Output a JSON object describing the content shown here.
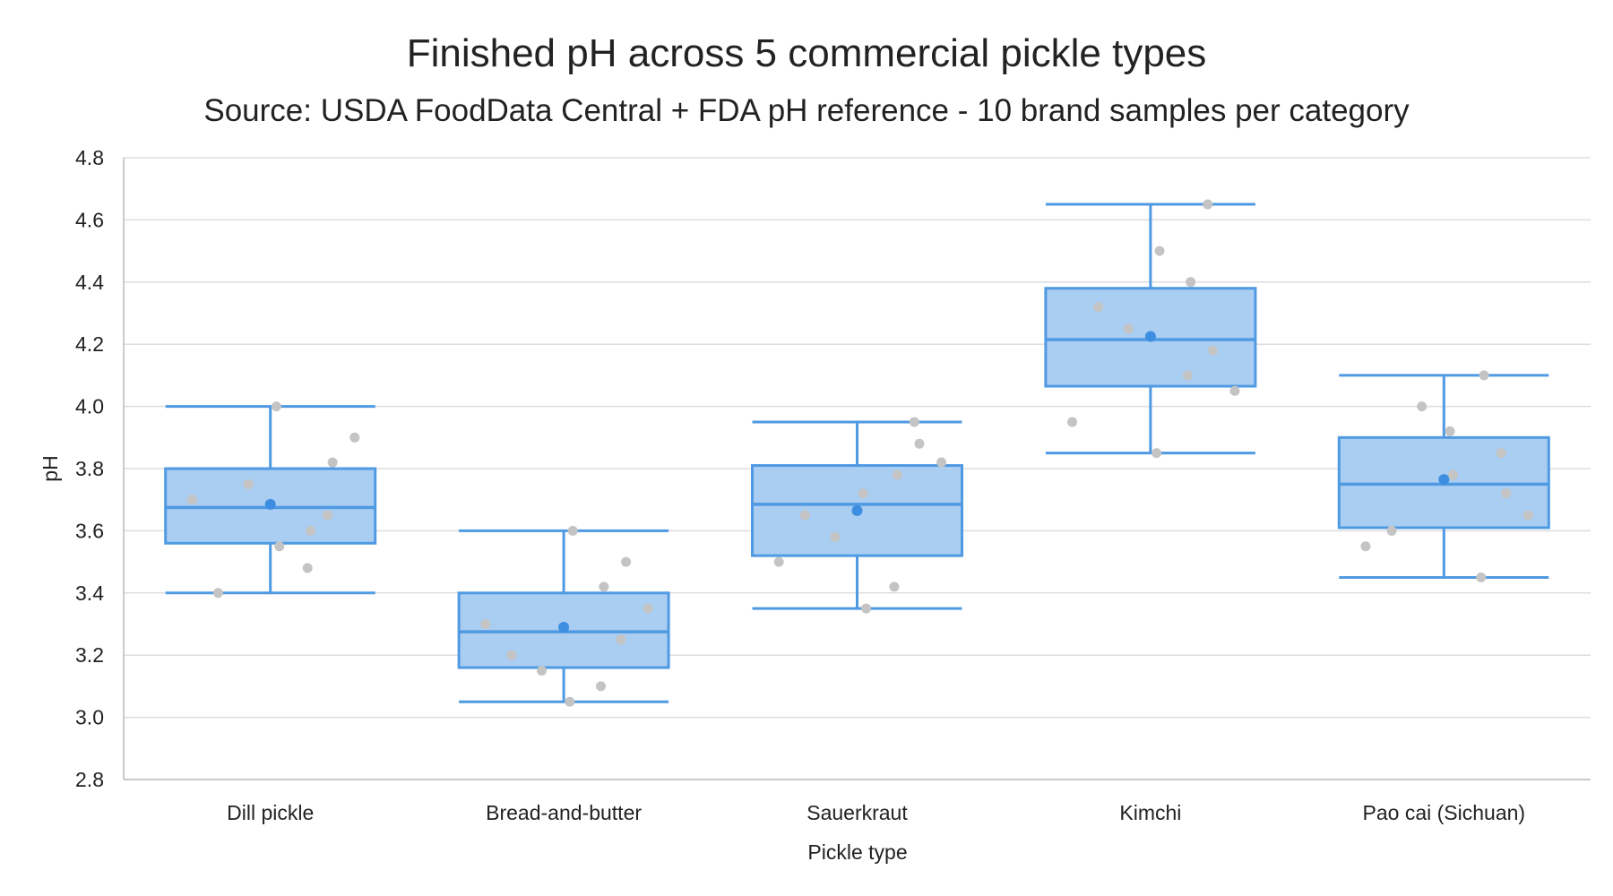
{
  "chart_data": {
    "type": "box",
    "title": "Finished pH across 5 commercial pickle types",
    "subtitle": "Source: USDA FoodData Central + FDA pH reference - 10 brand samples per category",
    "xlabel": "Pickle type",
    "ylabel": "pH",
    "ylim": [
      2.8,
      4.8
    ],
    "yticks": [
      2.8,
      3.0,
      3.2,
      3.4,
      3.6,
      3.8,
      4.0,
      4.2,
      4.4,
      4.6,
      4.8
    ],
    "ytick_labels": [
      "2.8",
      "3.0",
      "3.2",
      "3.4",
      "3.6",
      "3.8",
      "4.0",
      "4.2",
      "4.4",
      "4.6",
      "4.8"
    ],
    "grid": "horizontal",
    "legend": "none",
    "colors": {
      "box_fill": "#aacdf2",
      "box_stroke": "#4f9ae2",
      "mean_dot": "#3d8ee0",
      "sample_dot": "#c4c4c4"
    },
    "categories": [
      "Dill pickle",
      "Bread-and-butter",
      "Sauerkraut",
      "Kimchi",
      "Pao cai (Sichuan)"
    ],
    "boxes": [
      {
        "category": "Dill pickle",
        "whisker_low": 3.4,
        "q1": 3.56,
        "median": 3.675,
        "q3": 3.8,
        "whisker_high": 4.0,
        "mean": 3.685,
        "samples": [
          3.7,
          3.75,
          4.0,
          3.55,
          3.48,
          3.6,
          3.65,
          3.82,
          3.9,
          3.4
        ]
      },
      {
        "category": "Bread-and-butter",
        "whisker_low": 3.05,
        "q1": 3.16,
        "median": 3.275,
        "q3": 3.4,
        "whisker_high": 3.6,
        "mean": 3.29,
        "samples": [
          3.3,
          3.15,
          3.05,
          3.6,
          3.1,
          3.42,
          3.25,
          3.5,
          3.35,
          3.2
        ]
      },
      {
        "category": "Sauerkraut",
        "whisker_low": 3.35,
        "q1": 3.52,
        "median": 3.685,
        "q3": 3.81,
        "whisker_high": 3.95,
        "mean": 3.665,
        "samples": [
          3.5,
          3.58,
          3.72,
          3.35,
          3.42,
          3.78,
          3.95,
          3.88,
          3.82,
          3.65
        ]
      },
      {
        "category": "Kimchi",
        "whisker_low": 3.85,
        "q1": 4.065,
        "median": 4.215,
        "q3": 4.38,
        "whisker_high": 4.65,
        "mean": 4.225,
        "samples": [
          3.95,
          4.25,
          3.85,
          4.5,
          4.1,
          4.4,
          4.65,
          4.18,
          4.05,
          4.32
        ]
      },
      {
        "category": "Pao cai (Sichuan)",
        "whisker_low": 3.45,
        "q1": 3.61,
        "median": 3.75,
        "q3": 3.9,
        "whisker_high": 4.1,
        "mean": 3.765,
        "samples": [
          3.55,
          4.0,
          3.92,
          3.78,
          3.45,
          4.1,
          3.85,
          3.72,
          3.65,
          3.6
        ]
      }
    ]
  }
}
